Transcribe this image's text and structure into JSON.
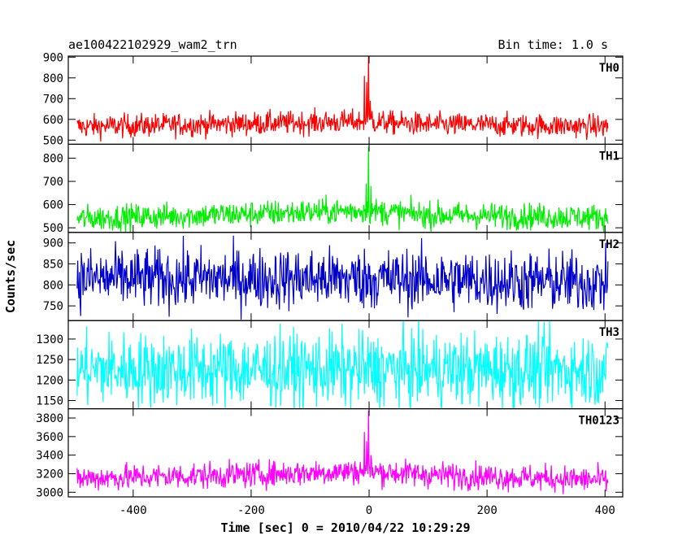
{
  "chart_data": {
    "type": "line",
    "title_left": "ae100422102929_wam2_trn",
    "title_right": "Bin time: 1.0 s",
    "xlabel": "Time [sec] 0 = 2010/04/22 10:29:29",
    "ylabel": "Counts/sec",
    "xlim": [
      -510,
      430
    ],
    "x_ticks": [
      -400,
      -200,
      0,
      200,
      400
    ],
    "x_range": [
      -495,
      405
    ],
    "grid": false,
    "panels": [
      {
        "name": "TH0",
        "color": "#ff0000",
        "ylim": [
          480,
          905
        ],
        "y_ticks": [
          500,
          600,
          700,
          800,
          900
        ],
        "baseline": [
          [
            -495,
            565
          ],
          [
            -300,
            575
          ],
          [
            -100,
            585
          ],
          [
            -10,
            590
          ],
          [
            100,
            575
          ],
          [
            300,
            570
          ],
          [
            405,
            565
          ]
        ],
        "noise": 28,
        "peaks": [
          [
            -8,
            810
          ],
          [
            -4,
            780
          ],
          [
            -1,
            905
          ],
          [
            2,
            690
          ],
          [
            5,
            640
          ]
        ]
      },
      {
        "name": "TH1",
        "color": "#00ee00",
        "ylim": [
          480,
          860
        ],
        "y_ticks": [
          500,
          600,
          700,
          800
        ],
        "baseline": [
          [
            -495,
            540
          ],
          [
            -200,
            560
          ],
          [
            -10,
            575
          ],
          [
            100,
            555
          ],
          [
            405,
            545
          ]
        ],
        "noise": 28,
        "peaks": [
          [
            -5,
            690
          ],
          [
            -1,
            850
          ],
          [
            3,
            680
          ]
        ]
      },
      {
        "name": "TH2",
        "color": "#0000cc",
        "ylim": [
          715,
          925
        ],
        "y_ticks": [
          750,
          800,
          850,
          900
        ],
        "baseline": [
          [
            -495,
            815
          ],
          [
            0,
            815
          ],
          [
            405,
            805
          ]
        ],
        "noise": 36,
        "peaks": []
      },
      {
        "name": "TH3",
        "color": "#00ffff",
        "ylim": [
          1130,
          1345
        ],
        "y_ticks": [
          1150,
          1200,
          1250,
          1300
        ],
        "baseline": [
          [
            -495,
            1225
          ],
          [
            405,
            1225
          ]
        ],
        "noise": 45,
        "peaks": []
      },
      {
        "name": "TH0123",
        "color": "#ff00ff",
        "ylim": [
          2950,
          3900
        ],
        "y_ticks": [
          3000,
          3200,
          3400,
          3600,
          3800
        ],
        "baseline": [
          [
            -495,
            3150
          ],
          [
            -200,
            3190
          ],
          [
            -10,
            3230
          ],
          [
            100,
            3190
          ],
          [
            405,
            3130
          ]
        ],
        "noise": 70,
        "peaks": [
          [
            -8,
            3650
          ],
          [
            -4,
            3550
          ],
          [
            -1,
            3880
          ],
          [
            3,
            3400
          ]
        ]
      }
    ]
  }
}
